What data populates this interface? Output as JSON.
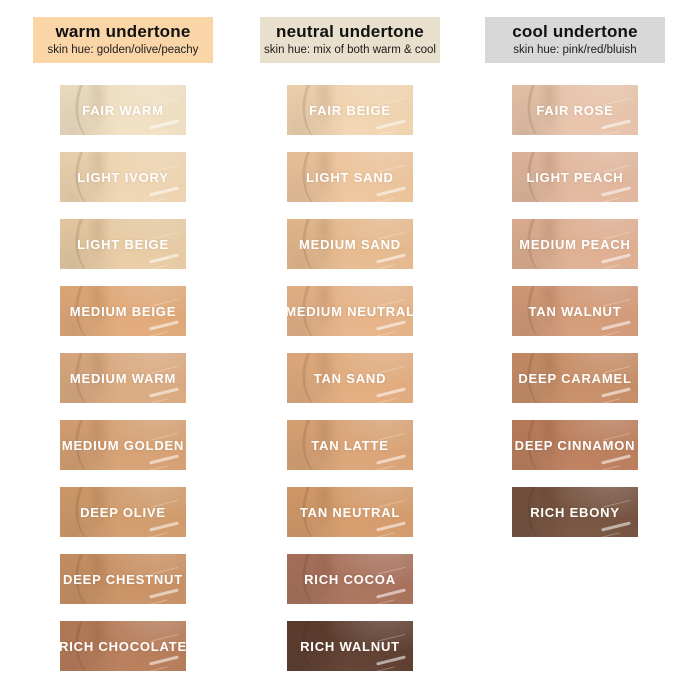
{
  "page": {
    "background": "#ffffff"
  },
  "columns": [
    {
      "id": "warm",
      "header": {
        "title": "warm undertone",
        "subtitle": "skin hue: golden/olive/peachy",
        "bg": "#f9d5a7"
      },
      "swatches": [
        {
          "label": "FAIR WARM",
          "color": "#f3e2c4"
        },
        {
          "label": "LIGHT IVORY",
          "color": "#f1d6b2"
        },
        {
          "label": "LIGHT BEIGE",
          "color": "#eacda4"
        },
        {
          "label": "MEDIUM BEIGE",
          "color": "#e3aa79"
        },
        {
          "label": "MEDIUM WARM",
          "color": "#ddab80"
        },
        {
          "label": "MEDIUM GOLDEN",
          "color": "#d8a172"
        },
        {
          "label": "DEEP OLIVE",
          "color": "#d39c6b"
        },
        {
          "label": "DEEP CHESTNUT",
          "color": "#cb9163"
        },
        {
          "label": "RICH CHOCOLATE",
          "color": "#b87c58"
        }
      ]
    },
    {
      "id": "neutral",
      "header": {
        "title": "neutral undertone",
        "subtitle": "skin hue: mix of both warm & cool",
        "bg": "#e9dfcd"
      },
      "swatches": [
        {
          "label": "FAIR BEIGE",
          "color": "#f4d6b1"
        },
        {
          "label": "LIGHT SAND",
          "color": "#efc69c"
        },
        {
          "label": "MEDIUM SAND",
          "color": "#e9bb8e"
        },
        {
          "label": "MEDIUM NEUTRAL",
          "color": "#e9b488"
        },
        {
          "label": "TAN SAND",
          "color": "#e4ad7e"
        },
        {
          "label": "TAN LATTE",
          "color": "#dca475"
        },
        {
          "label": "TAN NEUTRAL",
          "color": "#d79c6a"
        },
        {
          "label": "RICH COCOA",
          "color": "#aa715b"
        },
        {
          "label": "RICH WALNUT",
          "color": "#5d3c2d"
        }
      ]
    },
    {
      "id": "cool",
      "header": {
        "title": "cool undertone",
        "subtitle": "skin hue: pink/red/bluish",
        "bg": "#d8d8d8"
      },
      "swatches": [
        {
          "label": "FAIR ROSE",
          "color": "#eac5ab"
        },
        {
          "label": "LIGHT PEACH",
          "color": "#e4b99e"
        },
        {
          "label": "MEDIUM PEACH",
          "color": "#e1b092"
        },
        {
          "label": "TAN WALNUT",
          "color": "#d59b77"
        },
        {
          "label": "DEEP CARAMEL",
          "color": "#c98e66"
        },
        {
          "label": "DEEP CINNAMON",
          "color": "#bd7e5b"
        },
        {
          "label": "RICH EBONY",
          "color": "#75513d"
        }
      ]
    }
  ]
}
